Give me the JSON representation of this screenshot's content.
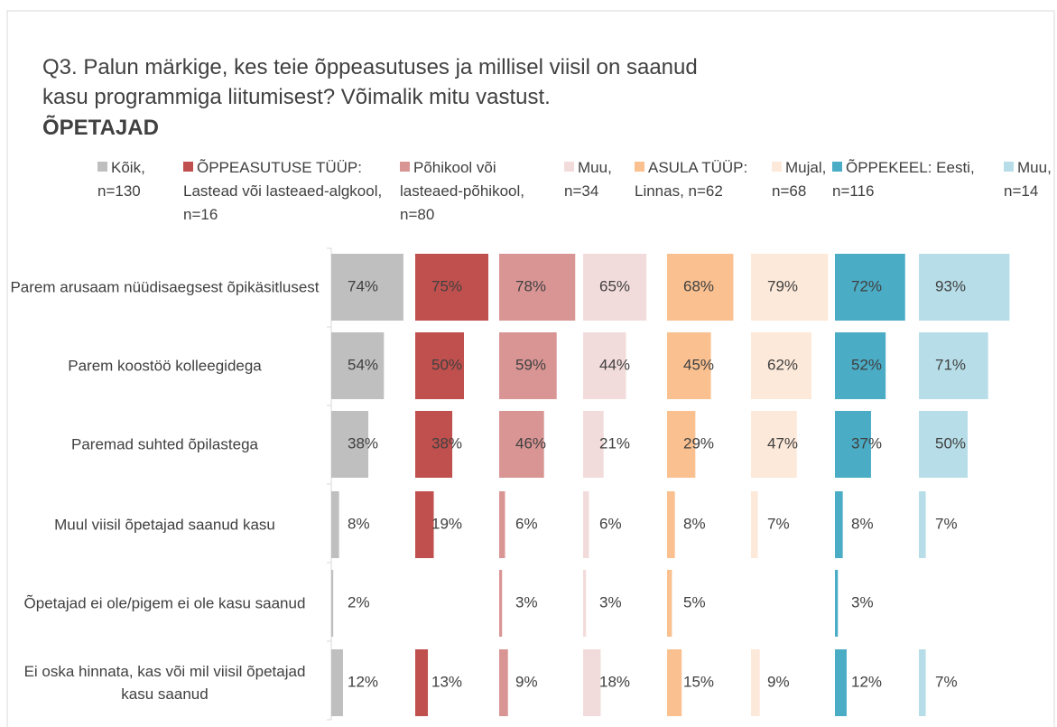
{
  "chart_data": {
    "type": "bar",
    "orientation": "horizontal",
    "title": "Q3. Palun märkige, kes teie õppeasutuses ja millisel viisil on saanud kasu programmiga liitumisest? Võimalik mitu vastust.",
    "subtitle": "ÕPETAJAD",
    "categories": [
      "Parem arusaam nüüdisaegsest õpikäsitlusest",
      "Parem koostöö kolleegidega",
      "Paremad suhted õpilastega",
      "Muul viisil õpetajad saanud kasu",
      "Õpetajad ei ole/pigem ei ole kasu saanud",
      "Ei oska hinnata, kas või mil viisil õpetajad kasu saanud"
    ],
    "xlim": [
      0,
      100
    ],
    "series": [
      {
        "name": "Kõik, n=130",
        "color": "#bfbfbf",
        "values": [
          74,
          54,
          38,
          8,
          2,
          12
        ],
        "value_labels": [
          "74%",
          "54%",
          "38%",
          "8%",
          "2%",
          "12%"
        ]
      },
      {
        "name": "ÕPPEASUTUSE TÜÜP: Lastead või lasteaed-algkool, n=16",
        "color": "#c0504d",
        "values": [
          75,
          50,
          38,
          19,
          null,
          13
        ],
        "value_labels": [
          "75%",
          "50%",
          "38%",
          "19%",
          null,
          "13%"
        ]
      },
      {
        "name": "Põhikool või lasteaed-põhikool, n=80",
        "color": "#d99594",
        "values": [
          78,
          59,
          46,
          6,
          3,
          9
        ],
        "value_labels": [
          "78%",
          "59%",
          "46%",
          "6%",
          "3%",
          "9%"
        ]
      },
      {
        "name": "Muu, n=34",
        "color": "#f2dcdb",
        "values": [
          65,
          44,
          21,
          6,
          3,
          18
        ],
        "value_labels": [
          "65%",
          "44%",
          "21%",
          "6%",
          "3%",
          "18%"
        ]
      },
      {
        "name": "ASULA TÜÜP: Linnas, n=62",
        "color": "#fac090",
        "values": [
          68,
          45,
          29,
          8,
          5,
          15
        ],
        "value_labels": [
          "68%",
          "45%",
          "29%",
          "8%",
          "5%",
          "15%"
        ]
      },
      {
        "name": "Mujal, n=68",
        "color": "#fde9d9",
        "values": [
          79,
          62,
          47,
          7,
          null,
          9
        ],
        "value_labels": [
          "79%",
          "62%",
          "47%",
          "7%",
          null,
          "9%"
        ]
      },
      {
        "name": "ÕPPEKEEL: Eesti, n=116",
        "color": "#4bacc6",
        "values": [
          72,
          52,
          37,
          8,
          3,
          12
        ],
        "value_labels": [
          "72%",
          "52%",
          "37%",
          "8%",
          "3%",
          "12%"
        ]
      },
      {
        "name": "Muu, n=14",
        "color": "#b7dee8",
        "values": [
          93,
          71,
          50,
          7,
          null,
          7
        ],
        "value_labels": [
          "93%",
          "71%",
          "50%",
          "7%",
          null,
          "7%"
        ]
      }
    ]
  }
}
